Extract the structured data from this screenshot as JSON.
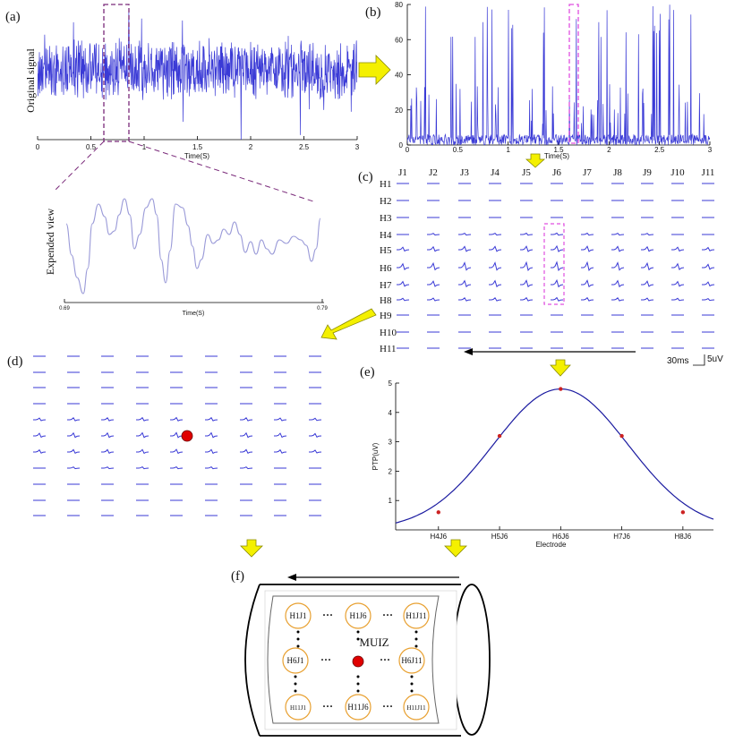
{
  "colors": {
    "signal": "#3a3ad6",
    "signal_light": "#9a9ad8",
    "magenta": "#e04fe0",
    "purple_dash": "#7a2a7a",
    "arrow_yellow": "#f4f000",
    "arrow_yellow_stroke": "#8a8a00",
    "red": "#e00000",
    "orange": "#e8a030",
    "line_red": "#cc2222",
    "muiz": "#cc2222"
  },
  "panels": {
    "a": {
      "label": "(a)",
      "ylabel": "Original signal",
      "xlabel": "Time(S)",
      "xticks": [
        "0",
        "0.5",
        "1",
        "1.5",
        "2",
        "2.5",
        "3"
      ],
      "xrange": [
        0,
        3
      ]
    },
    "zoom": {
      "ylabel": "Expended view",
      "xlabel": "Time(S)",
      "xticks": [
        "0.69",
        "0.79"
      ]
    },
    "b": {
      "label": "(b)",
      "xlabel": "Time(S)",
      "xticks": [
        "0",
        "0.5",
        "1",
        "1.5",
        "2",
        "2.5",
        "3"
      ],
      "yticks": [
        "0",
        "20",
        "40",
        "60",
        "80"
      ],
      "ylim": [
        0,
        80
      ]
    },
    "c": {
      "label": "(c)",
      "cols": [
        "J1",
        "J2",
        "J3",
        "J4",
        "J5",
        "J6",
        "J7",
        "J8",
        "J9",
        "J10",
        "J11"
      ],
      "rows": [
        "H1",
        "H2",
        "H3",
        "H4",
        "H5",
        "H6",
        "H7",
        "H8",
        "H9",
        "H10",
        "H11"
      ],
      "scale_time": "30ms",
      "scale_amp": "5uV"
    },
    "d": {
      "label": "(d)"
    },
    "e": {
      "label": "(e)"
    },
    "f": {
      "label": "(f)",
      "nodes": {
        "tl": "H1J1",
        "tm": "H1J6",
        "tr": "H1J11",
        "ml": "H6J1",
        "mr": "H6J11",
        "bl": "H11J1",
        "bm": "H11J6",
        "br": "H11J11"
      },
      "center_label": "MUIZ",
      "dots": "···"
    }
  },
  "chart_data": [
    {
      "type": "line",
      "title": "",
      "xlabel": "Electrode",
      "ylabel": "PTP(uV)",
      "categories": [
        "H4J6",
        "H5J6",
        "H6J6",
        "H7J6",
        "H8J6"
      ],
      "x": [
        1,
        2,
        3,
        4,
        5
      ],
      "y": [
        0.6,
        3.2,
        4.8,
        3.2,
        0.6
      ],
      "xlim": [
        0.3,
        5.5
      ],
      "ylim": [
        0,
        5
      ],
      "yticks": [
        1,
        2,
        3,
        4,
        5
      ],
      "grid": false
    }
  ]
}
